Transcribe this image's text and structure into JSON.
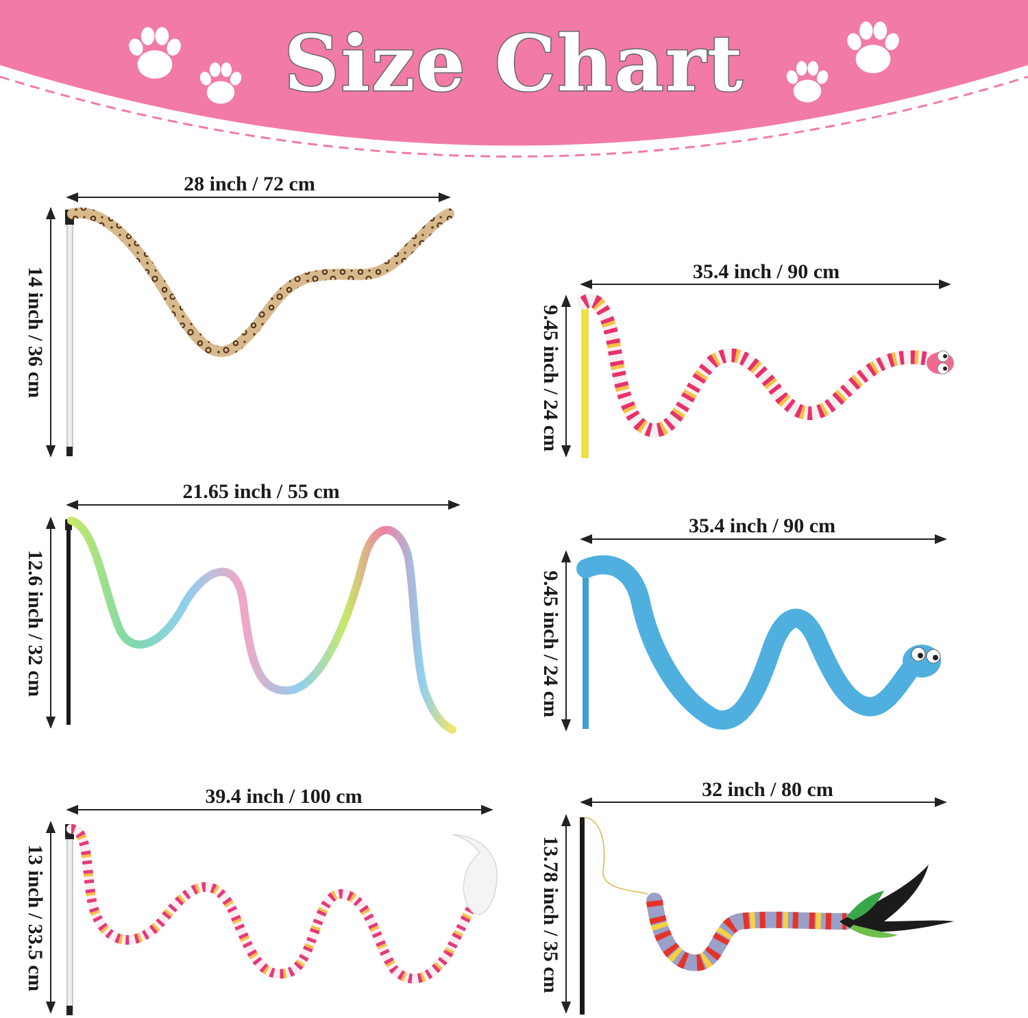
{
  "title": "Size Chart",
  "colors": {
    "banner": "#f27aa7",
    "paw": "#ffffff",
    "paw_shadow": "#f6b6cd",
    "dashes": "#f27aa7",
    "text": "#1a1a1a"
  },
  "icons": [
    "paw-print-icon"
  ],
  "toys": [
    {
      "name": "leopard-ribbon",
      "width_label": "28 inch / 72 cm",
      "height_label": "14 inch / 36 cm"
    },
    {
      "name": "striped-worm",
      "width_label": "35.4 inch / 90 cm",
      "height_label": "9.45 inch / 24 cm"
    },
    {
      "name": "rainbow-ribbon",
      "width_label": "21.65 inch / 55 cm",
      "height_label": "12.6 inch / 32 cm"
    },
    {
      "name": "blue-worm",
      "width_label": "35.4 inch / 90 cm",
      "height_label": "9.45 inch / 24 cm"
    },
    {
      "name": "feather-worm",
      "width_label": "39.4 inch / 100 cm",
      "height_label": "13 inch / 33.5 cm"
    },
    {
      "name": "caterpillar-feather",
      "width_label": "32 inch / 80 cm",
      "height_label": "13.78 inch / 35 cm"
    }
  ]
}
